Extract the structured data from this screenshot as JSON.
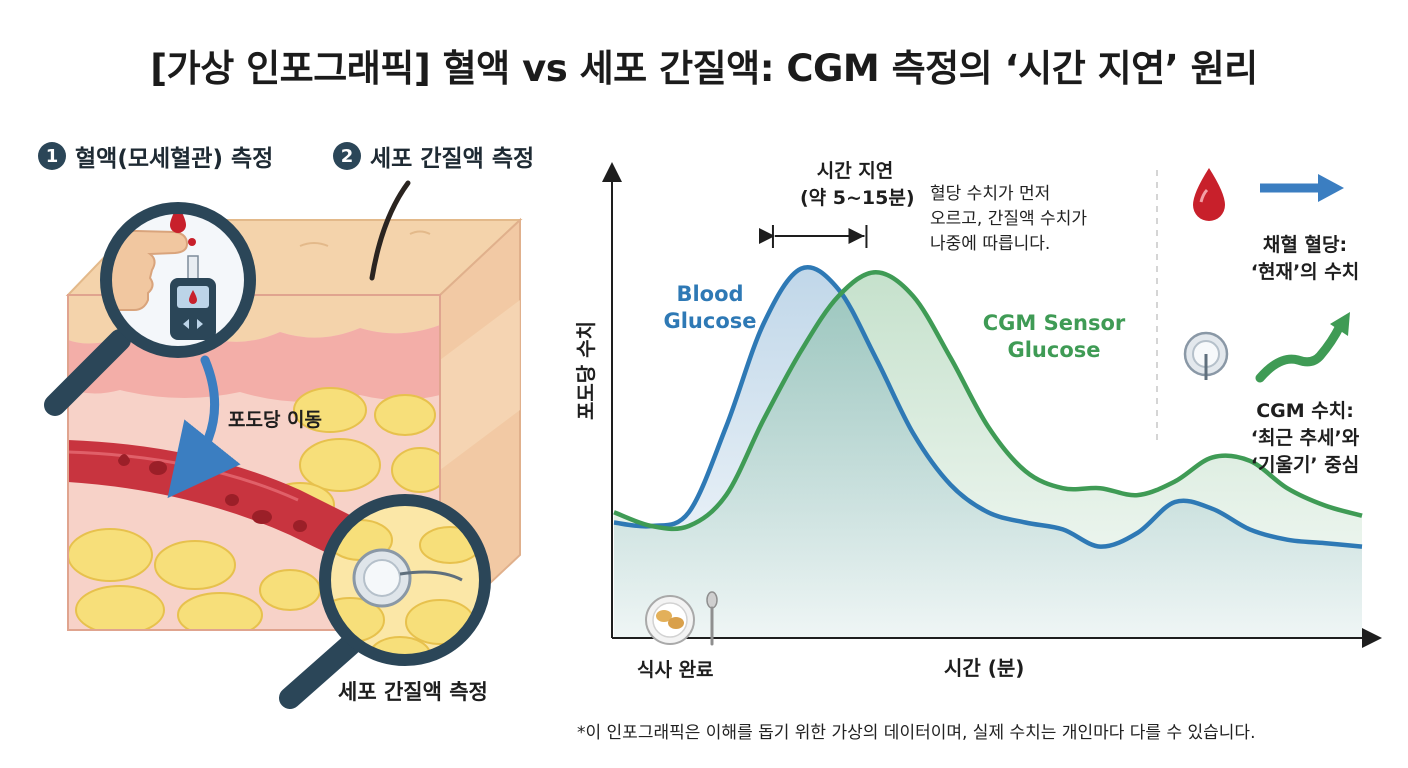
{
  "title": "[가상 인포그래픽] 혈액 vs 세포 간질액: CGM 측정의 ‘시간 지연’ 원리",
  "steps": [
    {
      "num": "1",
      "label": "혈액(모세혈관) 측정"
    },
    {
      "num": "2",
      "label": "세포 간질액 측정"
    }
  ],
  "illustration": {
    "glucose_move_label": "포도당 이동",
    "bottom_label": "세포 간질액 측정",
    "colors": {
      "skin_top": "#f4d3ab",
      "dermis": "#f6c2bc",
      "vessel": "#c8343f",
      "fat": "#f7df7a",
      "lens": "#2b4658",
      "arrow": "#3b7ec1"
    }
  },
  "chart_data": {
    "type": "line",
    "title": "",
    "xlabel": "시간 (분)",
    "ylabel": "포도당 수치",
    "x_start_label": "식사 완료",
    "x": [
      0,
      2,
      4,
      6,
      8,
      10,
      12,
      14,
      16,
      18,
      20,
      22,
      24,
      26,
      28,
      30,
      32,
      34,
      36,
      38,
      40
    ],
    "series": [
      {
        "name": "Blood Glucose",
        "name_lines": [
          "Blood",
          "Glucose"
        ],
        "color": "#2e79b5",
        "values": [
          22,
          21,
          25,
          50,
          80,
          96,
          90,
          70,
          48,
          33,
          25,
          22,
          20,
          15,
          19,
          28,
          26,
          20,
          17,
          16,
          15
        ]
      },
      {
        "name": "CGM Sensor Glucose",
        "name_lines": [
          "CGM Sensor",
          "Glucose"
        ],
        "color": "#3f9b55",
        "values": [
          25,
          21,
          21,
          30,
          52,
          72,
          88,
          95,
          88,
          70,
          50,
          37,
          32,
          32,
          30,
          34,
          41,
          40,
          32,
          27,
          24
        ]
      }
    ],
    "lag_annotation": {
      "lines": [
        "시간 지연",
        "(약 5~15분)"
      ],
      "from_x": 8.5,
      "to_x": 13.5
    },
    "note_lines": [
      "혈당 수치가 먼저",
      "오르고, 간질액 수치가",
      "나중에 따릅니다."
    ],
    "ylim": [
      0,
      100
    ],
    "xlim": [
      0,
      40
    ],
    "legend_side": [
      {
        "lines": [
          "채혈 혈당:",
          "‘현재’의 수치"
        ],
        "icon": "blood-drop-icon",
        "arrow": "right-arrow-icon",
        "color": "#3b7ec1"
      },
      {
        "lines": [
          "CGM 수치:",
          "‘최근 추세’와",
          "‘기울기’ 중심"
        ],
        "icon": "cgm-sensor-icon",
        "arrow": "trend-arrow-icon",
        "color": "#3f9b55"
      }
    ]
  },
  "footnote": "*이 인포그래픽은 이해를 돕기 위한 가상의 데이터이며, 실제 수치는 개인마다 다를 수 있습니다."
}
